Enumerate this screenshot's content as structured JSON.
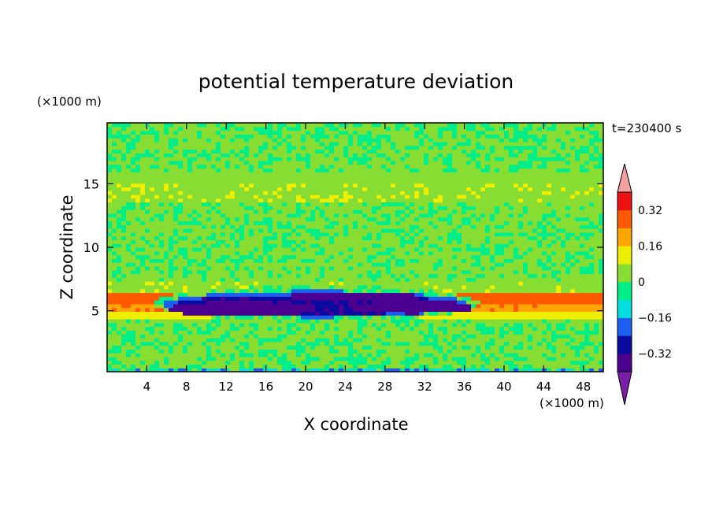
{
  "chart_data": {
    "type": "heatmap",
    "title": "potential temperature deviation",
    "xlabel": "X coordinate",
    "ylabel": "Z coordinate",
    "x_unit": "(×1000 m)",
    "y_unit": "(×1000 m)",
    "time_label": "t=230400 s",
    "xlim": [
      0,
      50
    ],
    "ylim": [
      0.2,
      19.8
    ],
    "x_ticks": [
      4,
      8,
      12,
      16,
      20,
      24,
      28,
      32,
      36,
      40,
      44,
      48
    ],
    "y_ticks": [
      5,
      10,
      15
    ],
    "colorbar": {
      "levels": [
        -0.4,
        -0.32,
        -0.24,
        -0.16,
        -0.08,
        0,
        0.08,
        0.16,
        0.24,
        0.32,
        0.4
      ],
      "colors": [
        "#4b0090",
        "#0a0aa0",
        "#1c5ff0",
        "#00dede",
        "#00ee88",
        "#88dd33",
        "#eeee00",
        "#ffa500",
        "#ff5a00",
        "#ee1111"
      ],
      "under_color": "#7a1ea8",
      "over_color": "#f4a0a0",
      "tick_labels": [
        {
          "value": 0.32,
          "label": "0.32"
        },
        {
          "value": 0.16,
          "label": "0.16"
        },
        {
          "value": 0,
          "label": "0"
        },
        {
          "value": -0.16,
          "label": "−0.16"
        },
        {
          "value": -0.32,
          "label": "−0.32"
        }
      ]
    },
    "field_regions": [
      {
        "type": "band",
        "z_range": [
          0.2,
          0.45
        ],
        "value": -0.1
      },
      {
        "type": "band",
        "z_range": [
          0.45,
          4.5
        ],
        "value": 0.02
      },
      {
        "type": "band",
        "z_range": [
          4.5,
          5.0
        ],
        "value": 0.12
      },
      {
        "type": "band",
        "z_range": [
          5.0,
          5.5
        ],
        "value": 0.22
      },
      {
        "type": "band",
        "z_range": [
          5.5,
          6.3
        ],
        "value": 0.28
      },
      {
        "type": "band",
        "z_range": [
          6.3,
          7.2
        ],
        "value": 0.05
      },
      {
        "type": "band",
        "z_range": [
          7.2,
          13.5
        ],
        "value": 0.02
      },
      {
        "type": "band",
        "z_range": [
          13.5,
          16.0
        ],
        "value": 0.05
      },
      {
        "type": "band",
        "z_range": [
          16.0,
          19.8
        ],
        "value": 0.01
      },
      {
        "type": "blob",
        "center": [
          21,
          5.6
        ],
        "half_width": [
          16.5,
          1.4
        ],
        "value": 0.0
      },
      {
        "type": "blob",
        "center": [
          21,
          5.55
        ],
        "half_width": [
          15.5,
          1.05
        ],
        "value": -0.2
      },
      {
        "type": "blob",
        "center": [
          21,
          5.5
        ],
        "half_width": [
          14.5,
          0.8
        ],
        "value": -0.3
      },
      {
        "type": "blob",
        "center": [
          13.5,
          5.15
        ],
        "half_width": [
          7.5,
          0.6
        ],
        "value": -0.36
      },
      {
        "type": "blob",
        "center": [
          30.5,
          5.3
        ],
        "half_width": [
          6.5,
          0.5
        ],
        "value": -0.36
      },
      {
        "type": "blob",
        "center": [
          25,
          6.1
        ],
        "half_width": [
          7.0,
          0.35
        ],
        "value": -0.36
      }
    ]
  }
}
